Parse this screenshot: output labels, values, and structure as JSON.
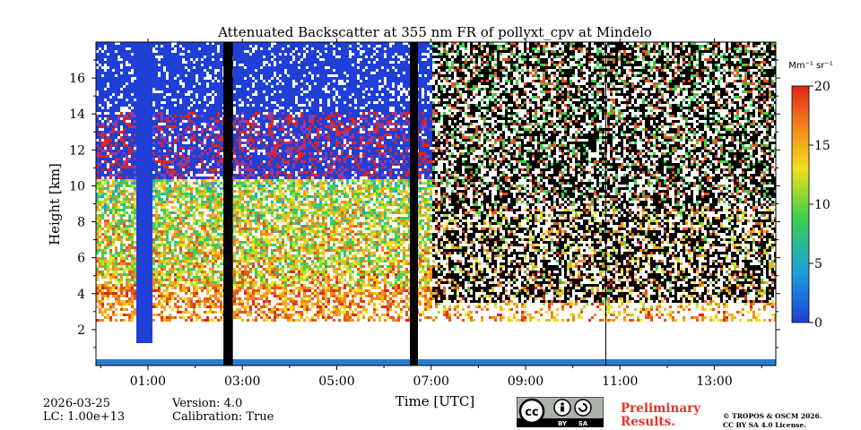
{
  "chart_data": {
    "type": "heatmap",
    "title": "Attenuated Backscatter at 355 nm FR of pollyxt_cpv at Mindelo",
    "xlabel": "Time [UTC]",
    "ylabel": "Height [km]",
    "x_ticks": [
      "01:00",
      "03:00",
      "05:00",
      "07:00",
      "09:00",
      "11:00",
      "13:00"
    ],
    "x_tick_hours": [
      1,
      3,
      5,
      7,
      9,
      11,
      13
    ],
    "x_range_hours": [
      -0.1,
      14.3
    ],
    "y_ticks": [
      "2",
      "4",
      "6",
      "8",
      "10",
      "12",
      "14",
      "16"
    ],
    "y_tick_values": [
      2,
      4,
      6,
      8,
      10,
      12,
      14,
      16
    ],
    "y_range_km": [
      0,
      18
    ],
    "colorbar": {
      "label": "Mm⁻¹ sr⁻¹",
      "ticks": [
        "0",
        "5",
        "10",
        "15",
        "20"
      ],
      "tick_values": [
        0,
        5,
        10,
        15,
        20
      ],
      "range": [
        0,
        20
      ],
      "colormap": [
        "#1f3fd6",
        "#1aa3d6",
        "#3fd14a",
        "#f2e01c",
        "#f28a1c",
        "#e2231a"
      ]
    },
    "data_gaps_hours": [
      [
        2.6,
        2.8
      ],
      [
        6.55,
        6.72
      ]
    ],
    "cloud_column_hours": [
      0.75,
      1.05
    ],
    "noise_start_hour": 7.0,
    "vertical_line_hour": 10.7
  },
  "footer": {
    "date": "2026-03-25",
    "lc": "LC: 1.00e+13",
    "version": "Version: 4.0",
    "calibration": "Calibration: True",
    "preliminary_line1": "Preliminary",
    "preliminary_line2": "Results.",
    "copyright_line1": "© TROPOS & OSCM 2026.",
    "copyright_line2": "CC BY SA 4.0 License.",
    "license_badge": "cc-by-sa-badge"
  }
}
